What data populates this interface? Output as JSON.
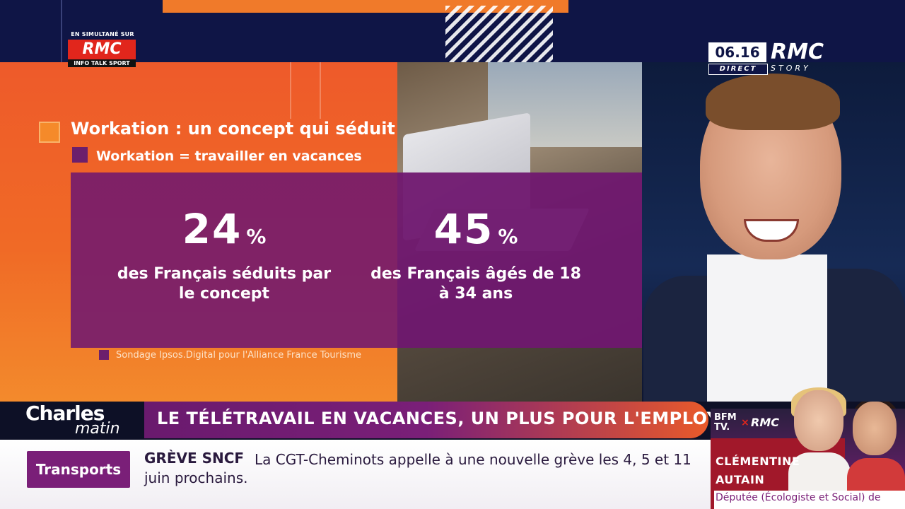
{
  "channel": {
    "simulcast_caption": "EN SIMULTANÉ SUR",
    "simulcast_brand": "RMC",
    "simulcast_tagline": "INFO TALK SPORT",
    "clock": "06.16",
    "direct_label": "DIRECT",
    "brand": "RMC",
    "brand_sub": "STORY"
  },
  "graphic": {
    "title": "Workation : un concept qui séduit",
    "subtitle": "Workation = travailler en vacances",
    "stats": [
      {
        "value": "24",
        "unit": "%",
        "description_line1": "des Français séduits par",
        "description_line2": "le concept"
      },
      {
        "value": "45",
        "unit": "%",
        "description_line1": "des Français âgés de 18",
        "description_line2": "à 34 ans"
      }
    ],
    "source": "Sondage Ipsos.Digital pour l'Alliance France Tourisme"
  },
  "lower_third": {
    "show_name_1": "Charles",
    "show_name_2": "matin",
    "headline": "LE TÉLÉTRAVAIL EN VACANCES, UN PLUS POUR L'EMPLOYEUR ?",
    "category": "Transports",
    "ticker_tag": "GRÈVE SNCF",
    "ticker_text": "La CGT-Cheminots appelle à une nouvelle grève les 4, 5 et 11",
    "ticker_text_2": "juin prochains."
  },
  "guest": {
    "partner_logo_1": "BFM",
    "partner_logo_2": "TV.",
    "partner_logo_sep": "×",
    "partner_logo_3": "RMC",
    "name_line1": "CLÉMENTINE",
    "name_line2": "AUTAIN",
    "role": "Députée (Écologiste et Social) de"
  },
  "colors": {
    "orange": "#f07a2a",
    "purple": "#7a1f78",
    "navy": "#0f1546",
    "rmc_red": "#e1261c"
  }
}
